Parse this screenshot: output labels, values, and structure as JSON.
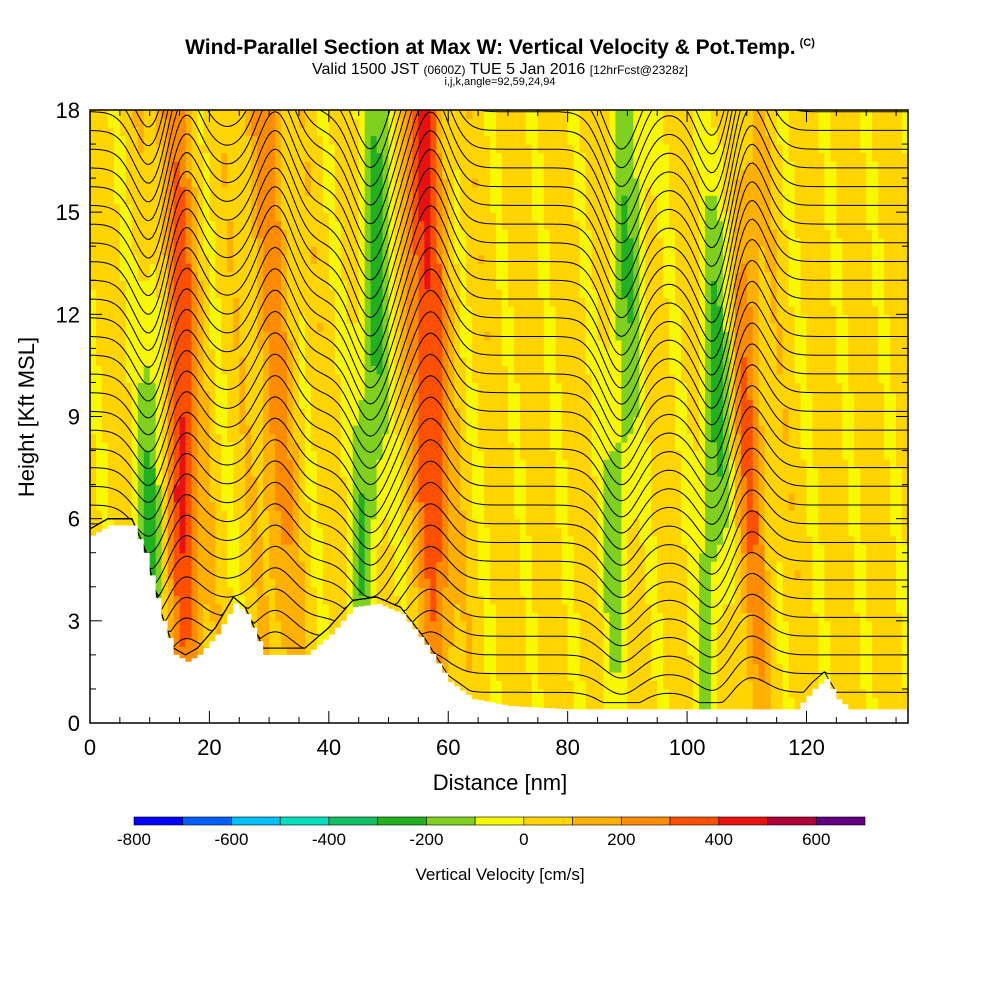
{
  "title": {
    "main": "Wind-Parallel Section at Max W: Vertical Velocity & Pot.Temp.",
    "copyright": "(C)",
    "valid_prefix": "Valid 1500 JST",
    "valid_utc": "(0600Z)",
    "valid_date": "TUE 5 Jan 2016",
    "forecast": "[12hrFcst@2328z]",
    "indices": "i,j,k,angle=92,59,24,94"
  },
  "chart_data": {
    "type": "heatmap",
    "xlabel": "Distance [nm]",
    "ylabel": "Height [Kft MSL]",
    "xlim": [
      0,
      137
    ],
    "ylim": [
      0,
      18
    ],
    "xticks": [
      0,
      20,
      40,
      60,
      80,
      100,
      120
    ],
    "yticks": [
      0,
      3,
      6,
      9,
      12,
      15,
      18
    ],
    "xtick_labels": [
      "0",
      "20",
      "40",
      "60",
      "80",
      "100",
      "120"
    ],
    "ytick_labels": [
      "0",
      "3",
      "6",
      "9",
      "12",
      "15",
      "18"
    ],
    "colorbar": {
      "label": "Vertical Velocity [cm/s]",
      "range": [
        -800,
        700
      ],
      "tick_values": [
        -800,
        -600,
        -400,
        -200,
        0,
        200,
        400,
        600
      ],
      "tick_labels": [
        "-800",
        "-600",
        "-400",
        "-200",
        "0",
        "200",
        "400",
        "600"
      ],
      "colors": [
        "#0000ff",
        "#0060ff",
        "#00c0ff",
        "#00e0c0",
        "#10c060",
        "#20b020",
        "#80d020",
        "#f8f800",
        "#ffd400",
        "#ffb000",
        "#ff8c00",
        "#ff5000",
        "#e81010",
        "#b00038",
        "#600080"
      ]
    },
    "waves": [
      {
        "x": 15,
        "type": "updraft",
        "peak_w": 450
      },
      {
        "x": 11,
        "type": "downdraft",
        "peak_w": -250
      },
      {
        "x": 31,
        "type": "updraft",
        "peak_w": 200
      },
      {
        "x": 47,
        "type": "downdraft",
        "peak_w": -250
      },
      {
        "x": 57,
        "type": "updraft",
        "peak_w": 400
      },
      {
        "x": 89,
        "type": "downdraft",
        "peak_w": -200
      },
      {
        "x": 105,
        "type": "downdraft",
        "peak_w": -250
      },
      {
        "x": 110,
        "type": "updraft",
        "peak_w": 250
      }
    ],
    "terrain_kft": [
      [
        0,
        5.5
      ],
      [
        3,
        5.8
      ],
      [
        7,
        5.8
      ],
      [
        9,
        5.0
      ],
      [
        12,
        3.0
      ],
      [
        14,
        2.0
      ],
      [
        16,
        1.8
      ],
      [
        18,
        2.0
      ],
      [
        21,
        2.6
      ],
      [
        24,
        3.5
      ],
      [
        26,
        3.2
      ],
      [
        29,
        2.0
      ],
      [
        36,
        2.0
      ],
      [
        40,
        2.6
      ],
      [
        44,
        3.4
      ],
      [
        48,
        3.5
      ],
      [
        52,
        3.2
      ],
      [
        56,
        2.3
      ],
      [
        60,
        1.2
      ],
      [
        64,
        0.7
      ],
      [
        70,
        0.5
      ],
      [
        80,
        0.4
      ],
      [
        100,
        0.4
      ],
      [
        118,
        0.4
      ],
      [
        121,
        1.0
      ],
      [
        123,
        1.3
      ],
      [
        125,
        0.7
      ],
      [
        127,
        0.4
      ],
      [
        137,
        0.4
      ]
    ],
    "isentrope_count": 34
  }
}
